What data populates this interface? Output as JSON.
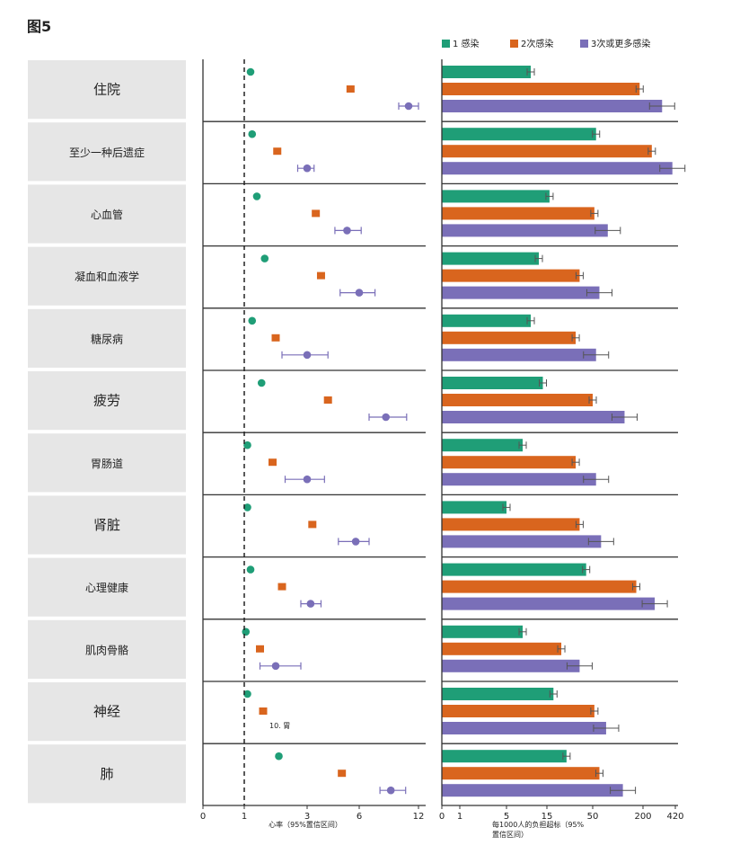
{
  "figure_label": "图5",
  "chart_data": {
    "type": "bar",
    "legend": [
      "1 感染",
      "2次感染",
      "3次或更多感染"
    ],
    "colors": {
      "series1": "#1f9e77",
      "series2": "#d9651e",
      "series3": "#7a6fb8",
      "label_bg": "#e6e6e6"
    },
    "categories": [
      "住院",
      "至少一种后遗症",
      "心血管",
      "凝血和血液学",
      "糖尿病",
      "疲劳",
      "胃肠道",
      "肾脏",
      "心理健康",
      "肌肉骨骼",
      "神经",
      "肺"
    ],
    "category_font_size": [
      "big",
      "small",
      "small",
      "small",
      "small",
      "big",
      "small",
      "big",
      "small",
      "small",
      "big",
      "big"
    ],
    "left_panel": {
      "xlabel": "心率（95%置信区间）",
      "ticks": [
        0,
        1,
        3,
        6,
        12
      ],
      "reference_line": 1,
      "note": "10. 胃",
      "series": [
        {
          "name": "1 感染",
          "values": [
            1.2,
            1.25,
            1.4,
            1.65,
            1.25,
            1.55,
            1.1,
            1.1,
            1.2,
            1.05,
            1.1,
            2.1
          ]
        },
        {
          "name": "2次感染",
          "values": [
            5.5,
            2.05,
            3.5,
            3.8,
            2.0,
            4.2,
            1.9,
            3.3,
            2.2,
            1.5,
            1.6,
            5.0
          ]
        },
        {
          "name": "3次或更多感染",
          "values": [
            11.0,
            3.0,
            5.3,
            6.0,
            3.0,
            8.7,
            3.0,
            5.8,
            3.2,
            2.0,
            null,
            9.2
          ],
          "ci": [
            [
              10.0,
              12.3
            ],
            [
              2.7,
              3.4
            ],
            [
              4.6,
              6.2
            ],
            [
              4.9,
              7.6
            ],
            [
              2.2,
              4.2
            ],
            [
              7.0,
              10.8
            ],
            [
              2.3,
              4.0
            ],
            [
              4.8,
              7.0
            ],
            [
              2.8,
              3.8
            ],
            [
              1.5,
              2.8
            ],
            null,
            [
              8.1,
              10.7
            ]
          ]
        }
      ]
    },
    "right_panel": {
      "xlabel": "每1000人的负担超标（95%置信区间）",
      "ticks": [
        0,
        1,
        5,
        15,
        50,
        200,
        420
      ],
      "series": [
        {
          "name": "1 感染",
          "values": [
            11,
            60,
            17,
            13,
            11,
            14,
            9,
            5,
            45,
            9,
            20,
            30
          ]
        },
        {
          "name": "2次感染",
          "values": [
            190,
            260,
            55,
            40,
            37,
            50,
            37,
            40,
            180,
            26,
            55,
            70
          ]
        },
        {
          "name": "3次或更多感染",
          "values": [
            330,
            400,
            95,
            70,
            60,
            145,
            60,
            75,
            280,
            40,
            90,
            140
          ]
        }
      ]
    }
  }
}
